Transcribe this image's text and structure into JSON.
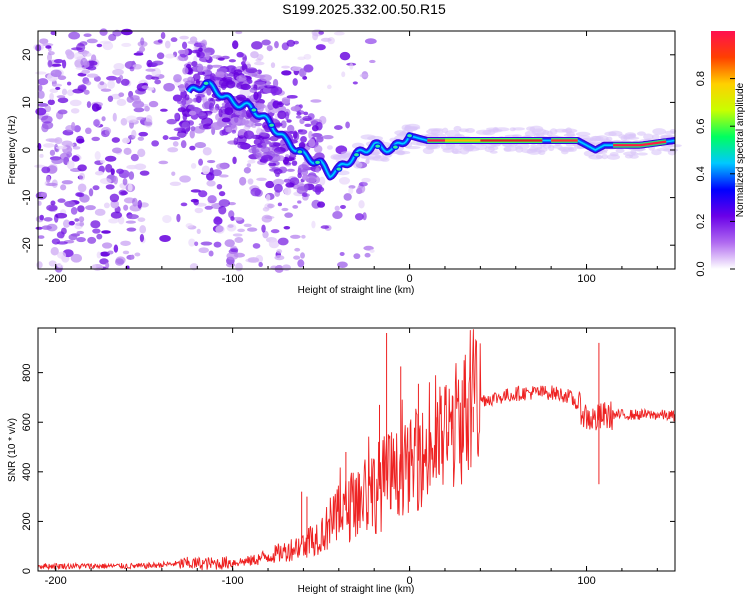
{
  "title": "S199.2025.332.00.50.R15",
  "chart_data": [
    {
      "type": "heatmap",
      "xlabel": "Height of straight line (km)",
      "ylabel": "Frequency (Hz)",
      "xlim": [
        -210,
        150
      ],
      "ylim": [
        -25,
        25
      ],
      "xticks": [
        -200,
        -100,
        0,
        100
      ],
      "yticks": [
        -20,
        -10,
        0,
        10,
        20
      ],
      "colorbar": {
        "label": "Normalized spectral amplitude",
        "ticks": [
          0.0,
          0.2,
          0.4,
          0.6,
          0.8
        ],
        "range": [
          0,
          1
        ],
        "colors": [
          "#ffffff",
          "#b06af0",
          "#6a00e8",
          "#0000ff",
          "#00c8ff",
          "#00ff60",
          "#c8ff00",
          "#ffd000",
          "#ff4000",
          "#ff1050"
        ]
      },
      "ridge": {
        "x": [
          -125,
          -115,
          -100,
          -90,
          -80,
          -70,
          -60,
          -50,
          -45,
          -40,
          -30,
          -20,
          -10,
          0,
          10,
          20,
          40,
          60,
          80,
          95,
          100,
          105,
          110,
          130,
          150
        ],
        "y": [
          12,
          14,
          10,
          9,
          6,
          2,
          -1,
          -3,
          -5,
          -4,
          -1,
          1,
          0,
          3,
          2,
          2,
          2,
          2,
          2,
          2,
          1,
          0,
          1,
          1,
          2
        ]
      }
    },
    {
      "type": "line",
      "xlabel": "Height of straight line (km)",
      "ylabel": "SNR (10 * v/v)",
      "xlim": [
        -210,
        150
      ],
      "ylim": [
        0,
        980
      ],
      "xticks": [
        -200,
        -100,
        0,
        100
      ],
      "yticks": [
        0,
        200,
        400,
        600,
        800
      ],
      "series_color": "#ee2222",
      "envelope": {
        "x": [
          -210,
          -150,
          -130,
          -110,
          -100,
          -90,
          -80,
          -70,
          -60,
          -50,
          -40,
          -30,
          -20,
          -10,
          0,
          10,
          20,
          30,
          40,
          50,
          60,
          70,
          80,
          90,
          95,
          100,
          105,
          110,
          120,
          130,
          140,
          150
        ],
        "y": [
          20,
          20,
          30,
          30,
          35,
          40,
          60,
          80,
          110,
          150,
          220,
          280,
          330,
          380,
          420,
          470,
          540,
          620,
          690,
          700,
          715,
          720,
          720,
          705,
          670,
          620,
          610,
          625,
          630,
          630,
          630,
          625
        ]
      },
      "spikes": [
        {
          "x": -61,
          "y": 320
        },
        {
          "x": -58,
          "y": 300
        },
        {
          "x": -36,
          "y": 480
        },
        {
          "x": -17,
          "y": 670
        },
        {
          "x": -13,
          "y": 960
        },
        {
          "x": -5,
          "y": 825
        },
        {
          "x": 5,
          "y": 755
        },
        {
          "x": 15,
          "y": 620
        },
        {
          "x": 24,
          "y": 650
        },
        {
          "x": 36,
          "y": 560
        },
        {
          "x": 107,
          "y": 920
        },
        {
          "x": 107,
          "y": 350
        }
      ]
    }
  ]
}
